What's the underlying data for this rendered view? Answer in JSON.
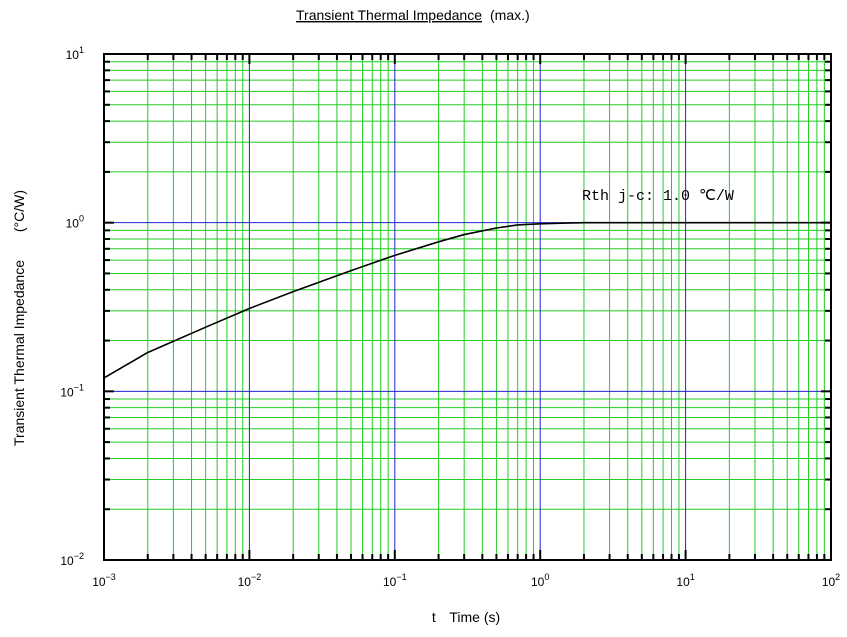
{
  "chart_data": {
    "type": "line",
    "title": "Transient Thermal Impedance",
    "title_suffix": "(max.)",
    "xlabel_symbol": "t",
    "xlabel": "Time (s)",
    "ylabel": "Transient Thermal Impedance",
    "ylabel_unit": "(°C/W)",
    "x_scale": "log",
    "y_scale": "log",
    "xlim": [
      0.001,
      100
    ],
    "ylim": [
      0.01,
      10
    ],
    "grid": true,
    "x_ticks": [
      {
        "base": "10",
        "exp": "−3",
        "value": 0.001
      },
      {
        "base": "10",
        "exp": "−2",
        "value": 0.01
      },
      {
        "base": "10",
        "exp": "−1",
        "value": 0.1
      },
      {
        "base": "10",
        "exp": "0",
        "value": 1
      },
      {
        "base": "10",
        "exp": "1",
        "value": 10
      },
      {
        "base": "10",
        "exp": "2",
        "value": 100
      }
    ],
    "y_ticks": [
      {
        "base": "10",
        "exp": "−2",
        "value": 0.01
      },
      {
        "base": "10",
        "exp": "−1",
        "value": 0.1
      },
      {
        "base": "10",
        "exp": "0",
        "value": 1
      },
      {
        "base": "10",
        "exp": "1",
        "value": 10
      }
    ],
    "annotation": "Rth j-c: 1.0 ℃/W",
    "series": [
      {
        "x": [
          0.001,
          0.002,
          0.005,
          0.01,
          0.02,
          0.05,
          0.1,
          0.2,
          0.3,
          0.5,
          0.7,
          1,
          1.5,
          2,
          3,
          5,
          10,
          30,
          100
        ],
        "y": [
          0.12,
          0.17,
          0.24,
          0.31,
          0.39,
          0.52,
          0.64,
          0.77,
          0.85,
          0.93,
          0.97,
          0.985,
          0.995,
          1.0,
          1.0,
          1.0,
          1.0,
          1.0,
          1.0
        ]
      }
    ],
    "colors": {
      "minor_grid": "#22cc22",
      "major_grid": "#2222cc",
      "curve": "#000000",
      "frame": "#000000"
    }
  }
}
